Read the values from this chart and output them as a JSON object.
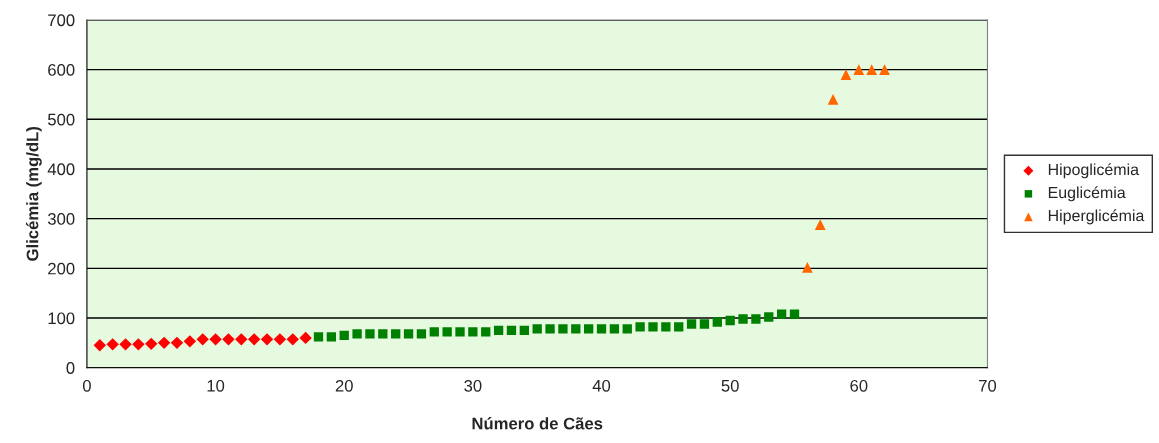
{
  "chart_data": {
    "type": "scatter",
    "xlabel": "Número de Cães",
    "ylabel": "Glicémia (mg/dL)",
    "xlim": [
      0,
      70
    ],
    "xticks": [
      0,
      10,
      20,
      30,
      40,
      50,
      60,
      70
    ],
    "ylim": [
      0,
      700
    ],
    "yticks": [
      0,
      100,
      200,
      300,
      400,
      500,
      600,
      700
    ],
    "grid": "y",
    "legend": "right",
    "series": [
      {
        "name": "Hipoglicémia",
        "color": "#ff0000",
        "marker": "diamond",
        "x": [
          1,
          2,
          3,
          4,
          5,
          6,
          7,
          8,
          9,
          10,
          11,
          12,
          13,
          14,
          15,
          16,
          17
        ],
        "values": [
          45,
          47,
          47,
          47,
          48,
          50,
          50,
          53,
          57,
          57,
          57,
          57,
          57,
          57,
          57,
          57,
          60
        ]
      },
      {
        "name": "Euglicémia",
        "color": "#008000",
        "marker": "square",
        "x": [
          18,
          19,
          20,
          21,
          22,
          23,
          24,
          25,
          26,
          27,
          28,
          29,
          30,
          31,
          32,
          33,
          34,
          35,
          36,
          37,
          38,
          39,
          40,
          41,
          42,
          43,
          44,
          45,
          46,
          47,
          48,
          49,
          50,
          51,
          52,
          53,
          54,
          55
        ],
        "values": [
          62,
          62,
          65,
          68,
          68,
          68,
          68,
          68,
          68,
          72,
          72,
          72,
          72,
          72,
          75,
          75,
          75,
          78,
          78,
          78,
          78,
          78,
          78,
          78,
          78,
          82,
          82,
          82,
          82,
          88,
          88,
          92,
          95,
          98,
          98,
          102,
          108,
          108
        ]
      },
      {
        "name": "Hiperglicémia",
        "color": "#ff6600",
        "marker": "triangle",
        "x": [
          56,
          57,
          58,
          59,
          60,
          61,
          62
        ],
        "values": [
          202,
          288,
          540,
          590,
          600,
          600,
          600
        ]
      }
    ]
  }
}
